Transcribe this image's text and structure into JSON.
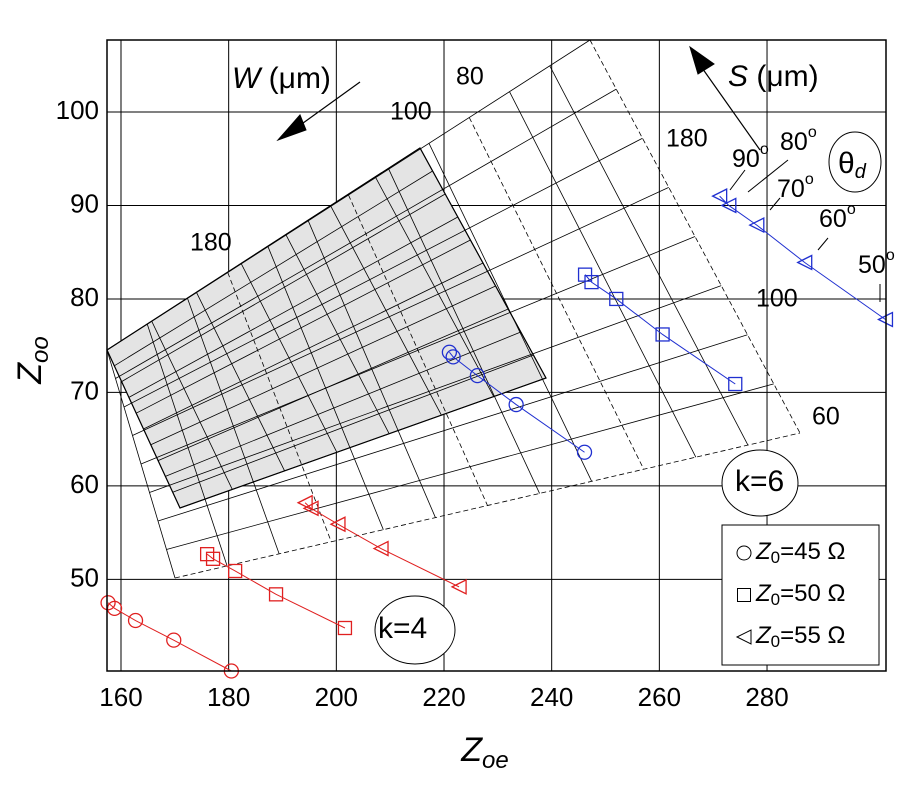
{
  "chart_data": {
    "type": "line",
    "x_label": {
      "main": "Z",
      "sub": "oe"
    },
    "y_label": {
      "main": "Z",
      "sub": "oo"
    },
    "xlim": [
      157.4,
      302.1
    ],
    "ylim": [
      40.2,
      107.7
    ],
    "xticks": [
      160,
      180,
      200,
      220,
      240,
      260,
      280
    ],
    "yticks": [
      50,
      60,
      70,
      80,
      90,
      100
    ],
    "grid": true,
    "legend": [
      {
        "marker": "circle",
        "symbol": "Z",
        "sub": "0",
        "text": "=45 Ω"
      },
      {
        "marker": "square",
        "symbol": "Z",
        "sub": "0",
        "text": "=50 Ω"
      },
      {
        "marker": "triangle",
        "symbol": "Z",
        "sub": "0",
        "text": "=55 Ω"
      }
    ],
    "series": [
      {
        "marker": "circle",
        "color": "#e02020",
        "x": [
          157.6,
          158.8,
          162.7,
          169.8,
          180.5
        ],
        "values": [
          47.5,
          46.9,
          45.6,
          43.5,
          40.2
        ]
      },
      {
        "marker": "square",
        "color": "#e02020",
        "x": [
          176.0,
          177.1,
          181.2,
          188.8,
          201.6
        ],
        "values": [
          52.7,
          52.2,
          50.9,
          48.4,
          44.8
        ]
      },
      {
        "marker": "triangle",
        "color": "#e02020",
        "x": [
          194.2,
          195.3,
          200.3,
          208.3,
          222.8
        ],
        "values": [
          58.2,
          57.6,
          55.9,
          53.3,
          49.2
        ]
      },
      {
        "marker": "circle",
        "color": "#2030d0",
        "x": [
          221.0,
          221.7,
          226.2,
          233.4,
          246.1
        ],
        "values": [
          74.3,
          73.8,
          71.8,
          68.7,
          63.6
        ]
      },
      {
        "marker": "square",
        "color": "#2030d0",
        "x": [
          246.2,
          247.4,
          252.0,
          260.6,
          274.1
        ],
        "values": [
          82.6,
          81.8,
          80.0,
          76.2,
          70.9
        ]
      },
      {
        "marker": "triangle",
        "color": "#2030d0",
        "x": [
          271.2,
          272.9,
          278.1,
          287.0,
          302.0
        ],
        "values": [
          91.0,
          90.0,
          87.9,
          83.9,
          77.8
        ]
      }
    ],
    "annotations": {
      "w_label": {
        "main": "W",
        "unit": " (μm)"
      },
      "s_label": {
        "main": "S",
        "unit": " (μm)"
      },
      "mesh_labels": [
        "80",
        "100",
        "180",
        "180",
        "100",
        "60"
      ],
      "angle_labels": [
        {
          "text": "90",
          "sup": "o"
        },
        {
          "text": "80",
          "sup": "o"
        },
        {
          "text": "70",
          "sup": "o"
        },
        {
          "text": "60",
          "sup": "o"
        },
        {
          "text": "50",
          "sup": "o"
        }
      ],
      "theta": {
        "main": "θ",
        "sub": "d"
      },
      "k6": "k=6",
      "k4": "k=4"
    }
  }
}
